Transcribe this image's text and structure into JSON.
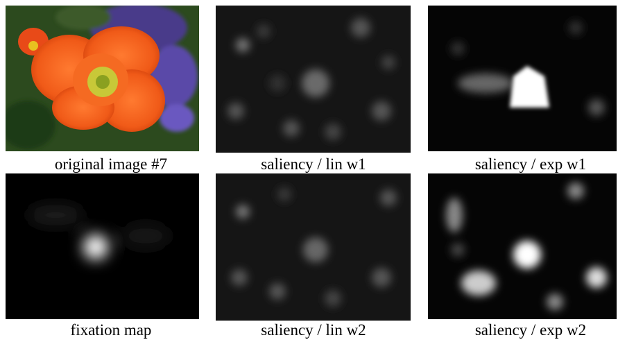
{
  "panels": [
    {
      "caption": "original image #7"
    },
    {
      "caption": "saliency / lin w1"
    },
    {
      "caption": "saliency / exp w1"
    },
    {
      "caption": "fixation map"
    },
    {
      "caption": "saliency / lin w2"
    },
    {
      "caption": "saliency / exp w2"
    }
  ]
}
